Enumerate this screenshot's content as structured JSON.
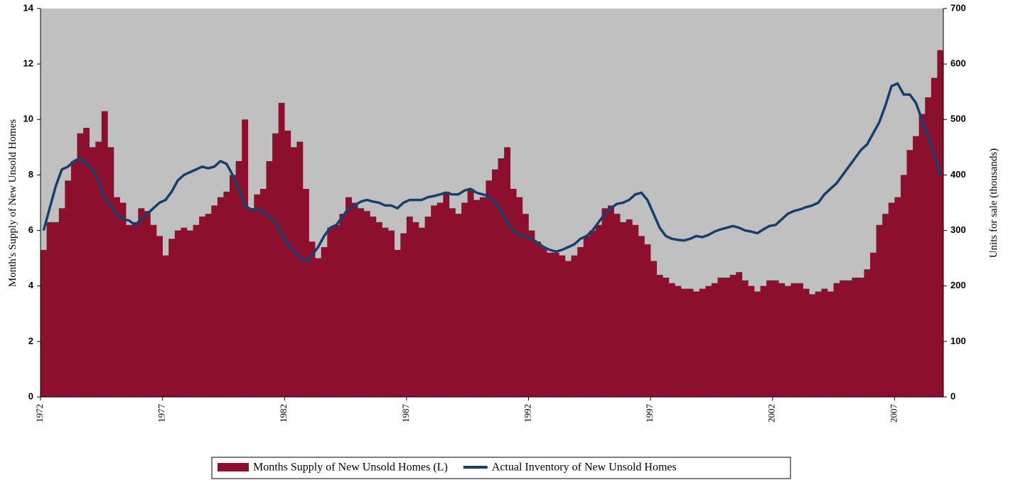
{
  "chart_data": {
    "type": "bar",
    "x": [
      1972,
      1972.25,
      1972.5,
      1972.75,
      1973,
      1973.25,
      1973.5,
      1973.75,
      1974,
      1974.25,
      1974.5,
      1974.75,
      1975,
      1975.25,
      1975.5,
      1975.75,
      1976,
      1976.25,
      1976.5,
      1976.75,
      1977,
      1977.25,
      1977.5,
      1977.75,
      1978,
      1978.25,
      1978.5,
      1978.75,
      1979,
      1979.25,
      1979.5,
      1979.75,
      1980,
      1980.25,
      1980.5,
      1980.75,
      1981,
      1981.25,
      1981.5,
      1981.75,
      1982,
      1982.25,
      1982.5,
      1982.75,
      1983,
      1983.25,
      1983.5,
      1983.75,
      1984,
      1984.25,
      1984.5,
      1984.75,
      1985,
      1985.25,
      1985.5,
      1985.75,
      1986,
      1986.25,
      1986.5,
      1986.75,
      1987,
      1987.25,
      1987.5,
      1987.75,
      1988,
      1988.25,
      1988.5,
      1988.75,
      1989,
      1989.25,
      1989.5,
      1989.75,
      1990,
      1990.25,
      1990.5,
      1990.75,
      1991,
      1991.25,
      1991.5,
      1991.75,
      1992,
      1992.25,
      1992.5,
      1992.75,
      1993,
      1993.25,
      1993.5,
      1993.75,
      1994,
      1994.25,
      1994.5,
      1994.75,
      1995,
      1995.25,
      1995.5,
      1995.75,
      1996,
      1996.25,
      1996.5,
      1996.75,
      1997,
      1997.25,
      1997.5,
      1997.75,
      1998,
      1998.25,
      1998.5,
      1998.75,
      1999,
      1999.25,
      1999.5,
      1999.75,
      2000,
      2000.25,
      2000.5,
      2000.75,
      2001,
      2001.25,
      2001.5,
      2001.75,
      2002,
      2002.25,
      2002.5,
      2002.75,
      2003,
      2003.25,
      2003.5,
      2003.75,
      2004,
      2004.25,
      2004.5,
      2004.75,
      2005,
      2005.25,
      2005.5,
      2005.75,
      2006,
      2006.25,
      2006.5,
      2006.75,
      2007,
      2007.25,
      2007.5,
      2007.75,
      2008,
      2008.25,
      2008.5,
      2008.75
    ],
    "series": [
      {
        "name": "Months Supply of New Unsold Homes (L)",
        "type": "bar",
        "color": "#8c0f2e",
        "values": [
          5.3,
          6.3,
          6.3,
          6.8,
          7.8,
          8.5,
          9.5,
          9.7,
          9.0,
          9.2,
          10.3,
          9.0,
          7.2,
          7.0,
          6.2,
          6.3,
          6.8,
          6.7,
          6.2,
          5.8,
          5.1,
          5.7,
          6.0,
          6.1,
          6.0,
          6.2,
          6.5,
          6.6,
          6.9,
          7.2,
          7.4,
          8.0,
          8.5,
          10.0,
          6.8,
          7.3,
          7.5,
          8.5,
          9.5,
          10.6,
          9.6,
          9.0,
          9.2,
          7.5,
          5.6,
          5.0,
          5.4,
          6.1,
          6.2,
          6.6,
          7.2,
          7.0,
          6.8,
          6.7,
          6.5,
          6.3,
          6.1,
          6.0,
          5.3,
          5.9,
          6.5,
          6.3,
          6.1,
          6.5,
          6.9,
          7.0,
          7.4,
          6.8,
          6.6,
          7.0,
          7.5,
          7.1,
          7.2,
          7.8,
          8.2,
          8.6,
          9.0,
          7.5,
          7.2,
          6.6,
          6.0,
          5.6,
          5.4,
          5.2,
          5.2,
          5.1,
          4.9,
          5.1,
          5.4,
          5.8,
          6.0,
          6.2,
          6.8,
          6.9,
          6.6,
          6.3,
          6.4,
          6.2,
          5.8,
          5.5,
          4.9,
          4.4,
          4.3,
          4.1,
          4.0,
          3.9,
          3.9,
          3.8,
          3.9,
          4.0,
          4.1,
          4.3,
          4.3,
          4.4,
          4.5,
          4.2,
          4.0,
          3.8,
          4.0,
          4.2,
          4.2,
          4.1,
          4.0,
          4.1,
          4.1,
          3.9,
          3.7,
          3.8,
          3.9,
          3.8,
          4.1,
          4.2,
          4.2,
          4.3,
          4.3,
          4.6,
          5.2,
          6.2,
          6.6,
          7.0,
          7.2,
          8.0,
          8.9,
          9.4,
          10.2,
          10.8,
          11.5,
          12.5
        ]
      },
      {
        "name": "Actual Inventory of New Unsold Homes",
        "type": "line",
        "axis": "y2",
        "color": "#173f6b",
        "values": [
          300,
          340,
          380,
          410,
          415,
          425,
          430,
          420,
          410,
          390,
          360,
          345,
          330,
          320,
          318,
          310,
          320,
          330,
          340,
          350,
          355,
          370,
          390,
          400,
          405,
          410,
          415,
          412,
          415,
          425,
          420,
          400,
          375,
          345,
          338,
          338,
          335,
          325,
          315,
          295,
          275,
          265,
          250,
          245,
          255,
          270,
          290,
          305,
          310,
          325,
          340,
          345,
          352,
          355,
          352,
          350,
          345,
          345,
          340,
          350,
          355,
          355,
          355,
          360,
          362,
          365,
          368,
          365,
          365,
          372,
          375,
          368,
          365,
          362,
          350,
          335,
          315,
          300,
          293,
          290,
          285,
          278,
          270,
          265,
          262,
          265,
          270,
          275,
          285,
          290,
          300,
          315,
          330,
          340,
          348,
          350,
          355,
          365,
          368,
          355,
          330,
          305,
          290,
          285,
          283,
          282,
          285,
          290,
          288,
          292,
          298,
          302,
          305,
          308,
          305,
          300,
          298,
          295,
          302,
          308,
          310,
          320,
          330,
          335,
          338,
          342,
          345,
          350,
          365,
          375,
          385,
          400,
          415,
          430,
          445,
          455,
          475,
          495,
          525,
          560,
          565,
          545,
          545,
          530,
          500,
          470,
          440,
          400
        ]
      }
    ],
    "y_label": "Month's Supply of New Unsold Homes",
    "y2_label": "Units for sale (thousands)",
    "xlim": [
      1972,
      2009
    ],
    "xticks": [
      1972,
      1977,
      1982,
      1987,
      1992,
      1997,
      2002,
      2007
    ],
    "ylim": [
      0,
      14
    ],
    "yticks": [
      0,
      2,
      4,
      6,
      8,
      10,
      12,
      14
    ],
    "y2lim": [
      0,
      700
    ],
    "y2ticks": [
      0,
      100,
      200,
      300,
      400,
      500,
      600,
      700
    ],
    "plot_background": "#c0c0c0"
  }
}
